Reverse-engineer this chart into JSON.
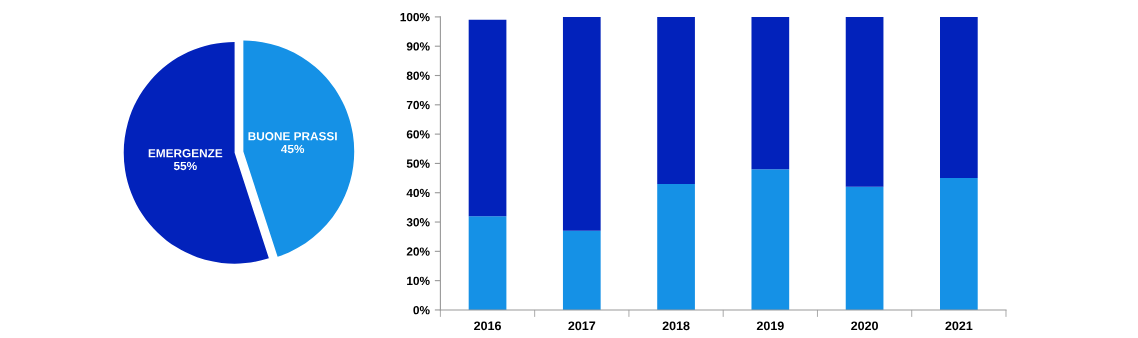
{
  "chart_data": [
    {
      "type": "pie",
      "categories": [
        "BUONE PRASSI",
        "EMERGENZE"
      ],
      "values": [
        45,
        55
      ],
      "colors": [
        "#1591e6",
        "#0222bb"
      ],
      "value_labels": [
        "45%",
        "55%"
      ]
    },
    {
      "type": "bar",
      "stacked": true,
      "categories": [
        "2016",
        "2017",
        "2018",
        "2019",
        "2020",
        "2021"
      ],
      "series": [
        {
          "color": "#1591e6",
          "values": [
            32,
            27,
            43,
            48,
            42,
            45
          ]
        },
        {
          "color": "#0222bb",
          "values": [
            67,
            73,
            57,
            52,
            58,
            55
          ]
        }
      ],
      "ylim": [
        0,
        100
      ],
      "yticks": [
        {
          "value": 0,
          "label": "0%"
        },
        {
          "value": 10,
          "label": "10%"
        },
        {
          "value": 20,
          "label": "20%"
        },
        {
          "value": 30,
          "label": "30%"
        },
        {
          "value": 40,
          "label": "40%"
        },
        {
          "value": 50,
          "label": "50%"
        },
        {
          "value": 60,
          "label": "60%"
        },
        {
          "value": 70,
          "label": "70%"
        },
        {
          "value": 80,
          "label": "80%"
        },
        {
          "value": 90,
          "label": "90%"
        },
        {
          "value": 100,
          "label": "100%"
        }
      ],
      "grid": false,
      "legend": false
    }
  ]
}
